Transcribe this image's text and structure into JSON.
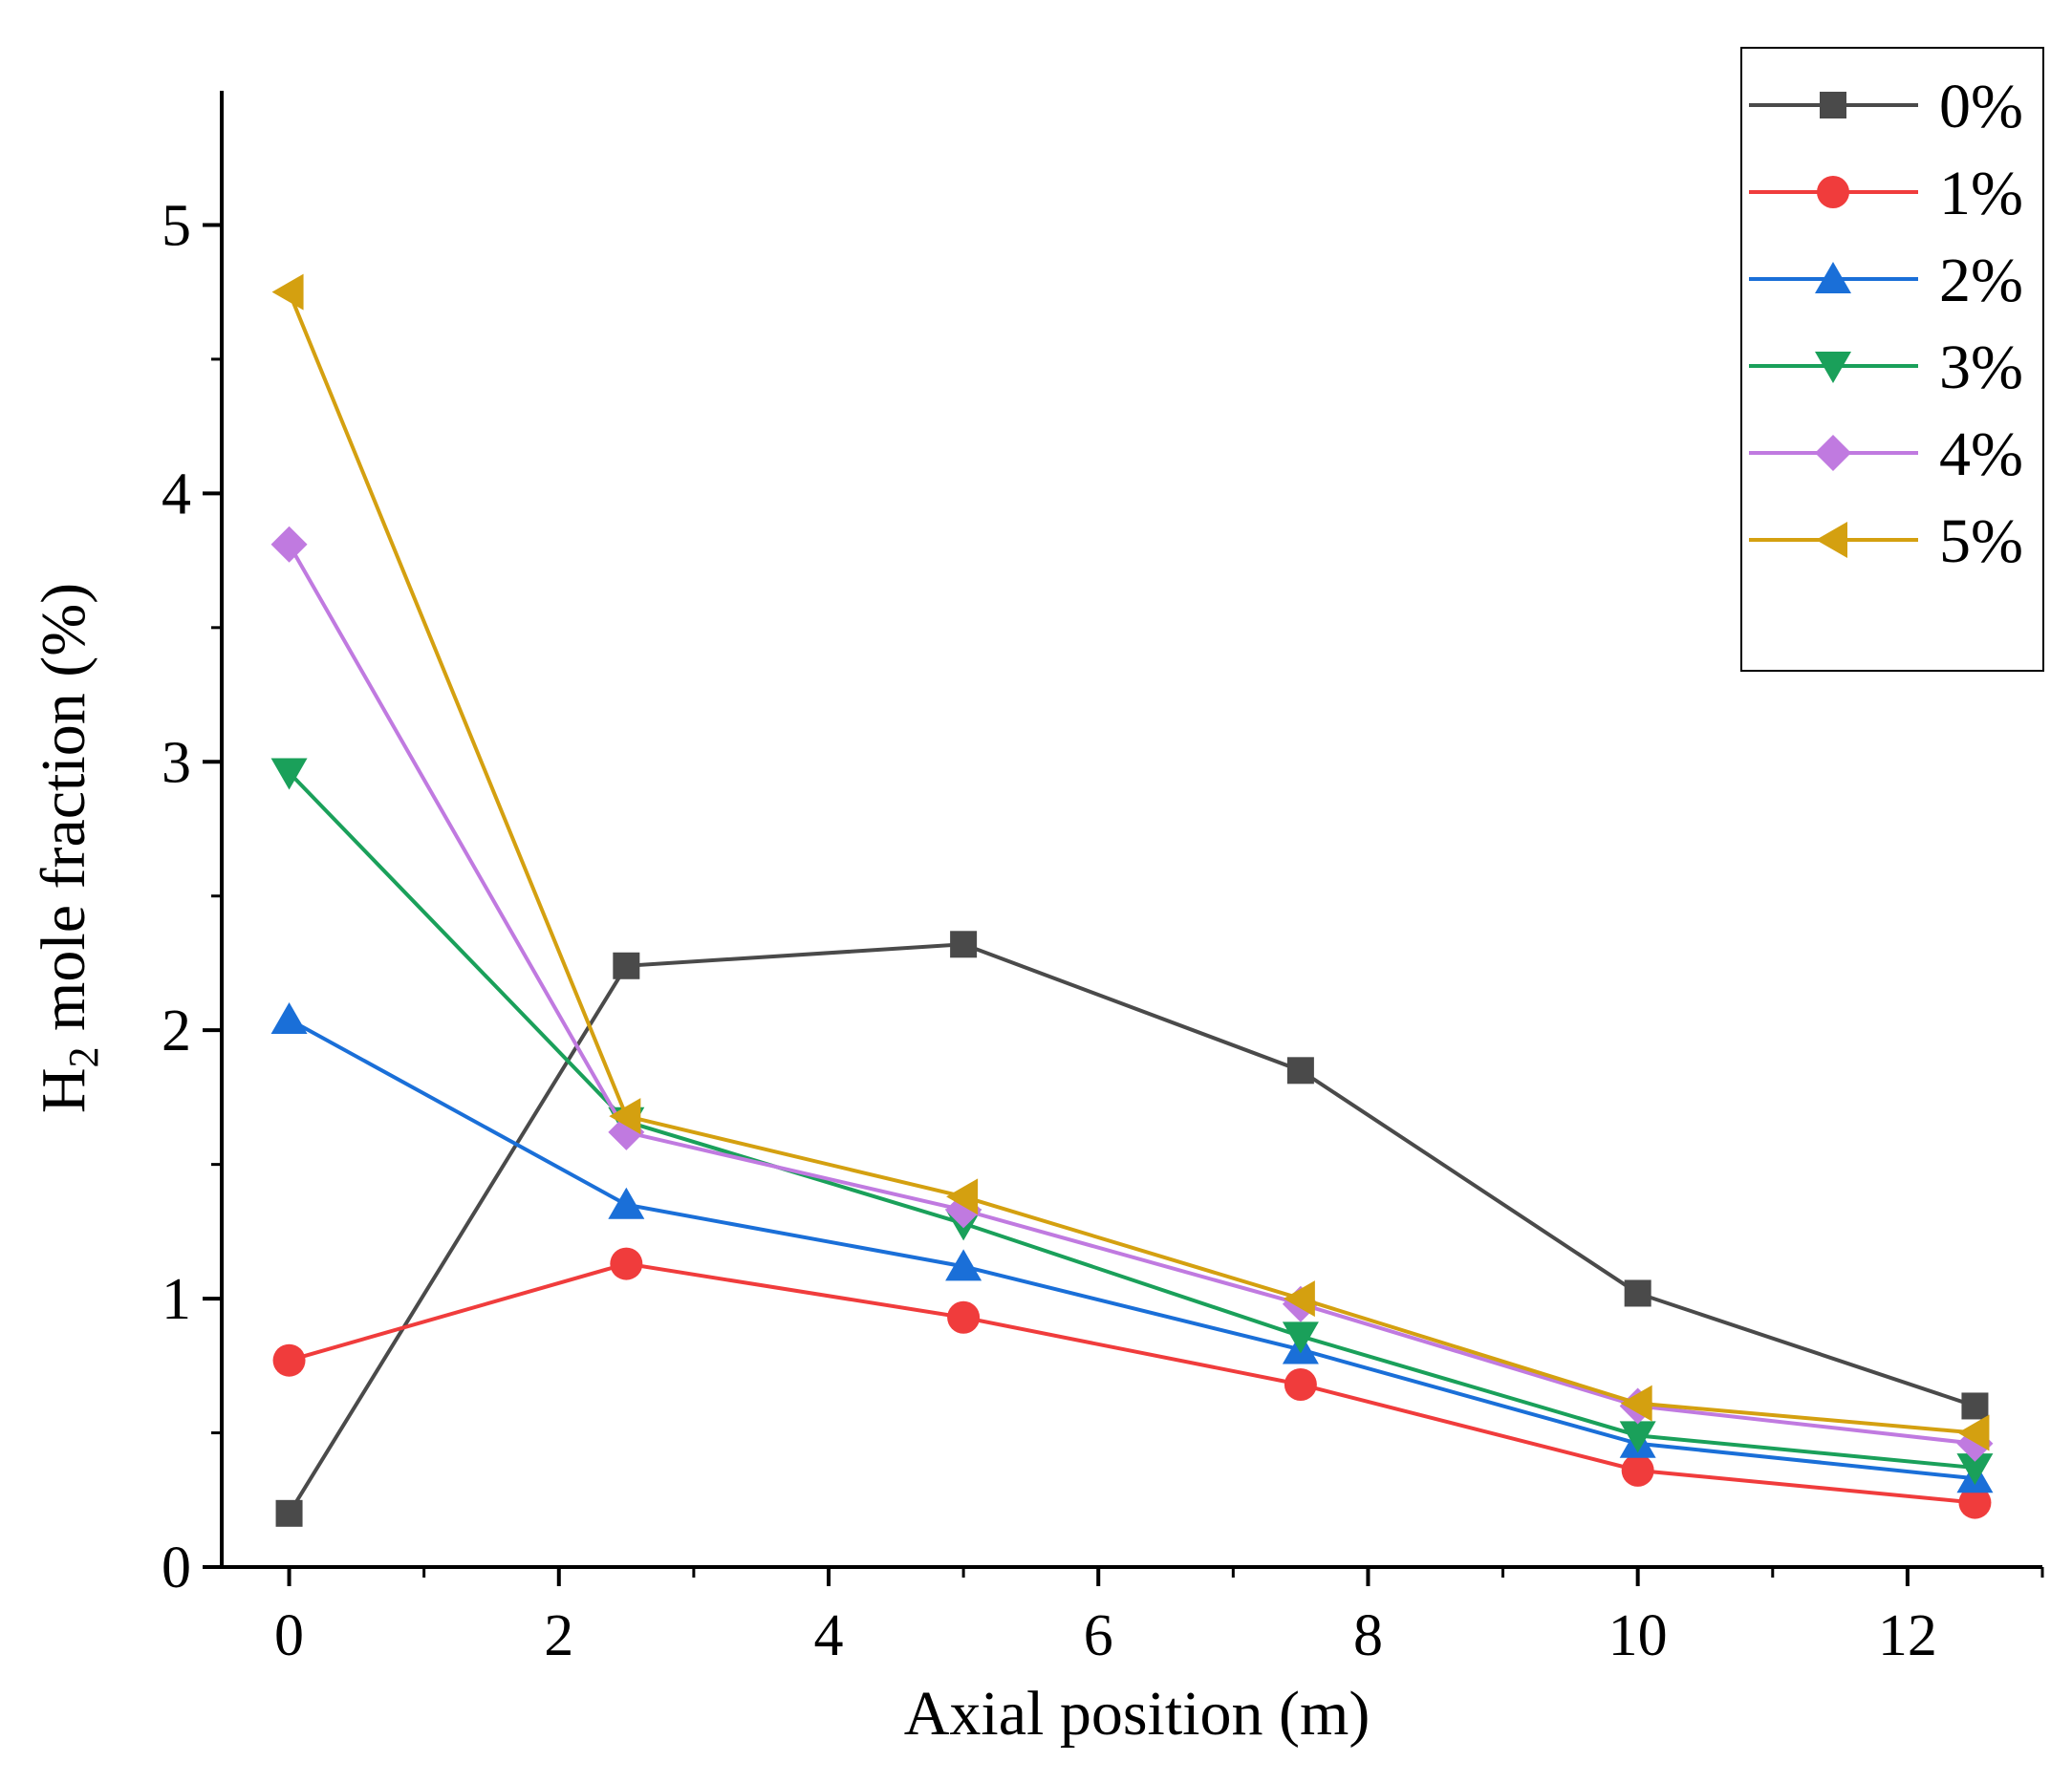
{
  "chart_data": {
    "type": "line",
    "title": "",
    "xlabel": "Axial position (m)",
    "ylabel_main": "H",
    "ylabel_sub": "2",
    "ylabel_rest": " mole fraction (%)",
    "xlim": [
      -0.5,
      13
    ],
    "ylim": [
      0,
      5.5
    ],
    "xticks": [
      0,
      2,
      4,
      6,
      8,
      10,
      12
    ],
    "xtick_labels": [
      "0",
      "2",
      "4",
      "6",
      "8",
      "10",
      "12"
    ],
    "yticks": [
      0,
      1,
      2,
      3,
      4,
      5
    ],
    "ytick_labels": [
      "0",
      "1",
      "2",
      "3",
      "4",
      "5"
    ],
    "grid": false,
    "legend_position": "top-right",
    "x": [
      0,
      2.5,
      5,
      7.5,
      10,
      12.5
    ],
    "series": [
      {
        "name": "0%",
        "color": "#4a4a4a",
        "marker": "square",
        "values": [
          0.2,
          2.24,
          2.32,
          1.85,
          1.02,
          0.6
        ]
      },
      {
        "name": "1%",
        "color": "#f03c3c",
        "marker": "circle",
        "values": [
          0.77,
          1.13,
          0.93,
          0.68,
          0.36,
          0.24
        ]
      },
      {
        "name": "2%",
        "color": "#1a6fd8",
        "marker": "triangle-up",
        "values": [
          2.04,
          1.35,
          1.12,
          0.81,
          0.46,
          0.33
        ]
      },
      {
        "name": "3%",
        "color": "#1aa05a",
        "marker": "triangle-down",
        "values": [
          2.96,
          1.66,
          1.28,
          0.86,
          0.49,
          0.37
        ]
      },
      {
        "name": "4%",
        "color": "#c07ae0",
        "marker": "diamond",
        "values": [
          3.81,
          1.62,
          1.33,
          0.98,
          0.6,
          0.46
        ]
      },
      {
        "name": "5%",
        "color": "#d4a010",
        "marker": "triangle-left",
        "values": [
          4.75,
          1.68,
          1.38,
          1.0,
          0.61,
          0.5
        ]
      }
    ]
  }
}
